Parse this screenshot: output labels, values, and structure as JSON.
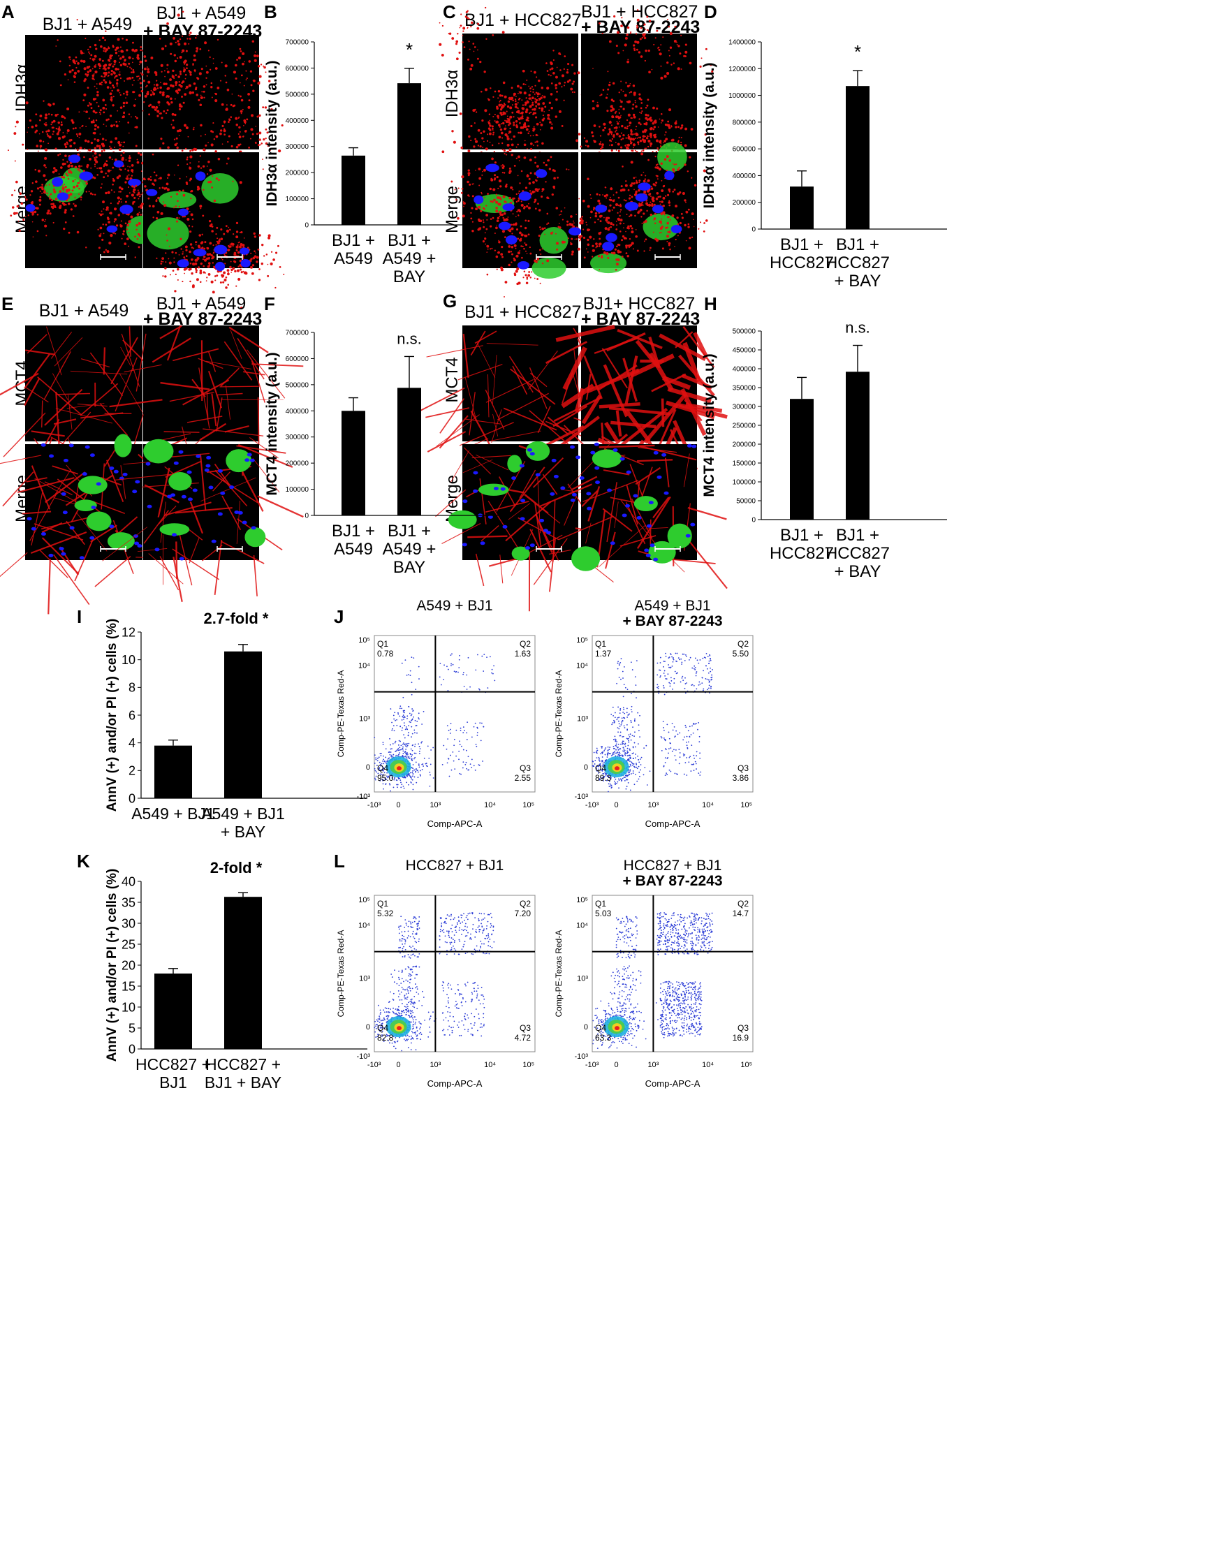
{
  "panels": {
    "A": {
      "letter": "A",
      "left": "BJ1 + A549",
      "right_top": "BJ1 + A549",
      "right_bottom": "+ BAY 87-2243",
      "row1": "IDH3α",
      "row2": "Merge"
    },
    "C": {
      "letter": "C",
      "left": "BJ1 + HCC827",
      "right_top": "BJ1 + HCC827",
      "right_bottom": "+ BAY 87-2243",
      "row1": "IDH3α",
      "row2": "Merge"
    },
    "E": {
      "letter": "E",
      "left": "BJ1 + A549",
      "right_top": "BJ1 + A549",
      "right_bottom": "+ BAY 87-2243",
      "row1": "MCT4",
      "row2": "Merge"
    },
    "G": {
      "letter": "G",
      "left": "BJ1 + HCC827",
      "right_top": "BJ1+ HCC827",
      "right_bottom": "+ BAY 87-2243",
      "row1": "MCT4",
      "row2": "Merge"
    },
    "J": {
      "letter": "J"
    },
    "L": {
      "letter": "L"
    }
  },
  "chart_data": [
    {
      "id": "B",
      "type": "bar",
      "ylabel": "IDH3α intensity  (a.u.)",
      "ylim": [
        0,
        700000
      ],
      "ticks": [
        0,
        100000,
        200000,
        300000,
        400000,
        500000,
        600000,
        700000
      ],
      "categories": [
        [
          "BJ1 +",
          "A549"
        ],
        [
          "BJ1 +",
          "A549 +",
          "BAY"
        ]
      ],
      "values": [
        265000,
        542000
      ],
      "errors": [
        30000,
        57000
      ],
      "annotation": "*"
    },
    {
      "id": "D",
      "type": "bar",
      "ylabel": "IDH3α intensity (a.u.)",
      "ylim": [
        0,
        1400000
      ],
      "ticks": [
        0,
        200000,
        400000,
        600000,
        800000,
        1000000,
        1200000,
        1400000
      ],
      "categories": [
        [
          "BJ1 +",
          "HCC827"
        ],
        [
          "BJ1 +",
          "HCC827",
          "+ BAY"
        ]
      ],
      "values": [
        318000,
        1070000
      ],
      "errors": [
        117000,
        115000
      ],
      "annotation": "*"
    },
    {
      "id": "F",
      "type": "bar",
      "ylabel": "MCT4 intensity (a.u.)",
      "ylim": [
        0,
        700000
      ],
      "ticks": [
        0,
        100000,
        200000,
        300000,
        400000,
        500000,
        600000,
        700000
      ],
      "categories": [
        [
          "BJ1 +",
          "A549"
        ],
        [
          "BJ1 +",
          "A549 +",
          "BAY"
        ]
      ],
      "values": [
        400000,
        488000
      ],
      "errors": [
        50000,
        120000
      ],
      "annotation": "n.s."
    },
    {
      "id": "H",
      "type": "bar",
      "ylabel": "MCT4 intensity (a.u.)",
      "ylim": [
        0,
        500000
      ],
      "ticks": [
        0,
        50000,
        100000,
        150000,
        200000,
        250000,
        300000,
        350000,
        400000,
        450000,
        500000
      ],
      "categories": [
        [
          "BJ1 +",
          "HCC827"
        ],
        [
          "BJ1 +",
          "HCC827",
          "+ BAY"
        ]
      ],
      "values": [
        320000,
        392000
      ],
      "errors": [
        57000,
        70000
      ],
      "annotation": "n.s."
    },
    {
      "id": "I",
      "type": "bar",
      "title": "2.7-fold *",
      "ylabel": "AnnV (+) and/or PI (+) cells (%)",
      "ylim": [
        0,
        12
      ],
      "ticks": [
        0,
        2,
        4,
        6,
        8,
        10,
        12
      ],
      "categories": [
        [
          "A549 + BJ1"
        ],
        [
          "A549 + BJ1",
          "+ BAY"
        ]
      ],
      "values": [
        3.8,
        10.6
      ],
      "errors": [
        0.4,
        0.5
      ]
    },
    {
      "id": "K",
      "type": "bar",
      "title": "2-fold *",
      "ylabel": "AnnV (+) and/or PI (+) cells (%)",
      "ylim": [
        0,
        40
      ],
      "ticks": [
        0,
        5,
        10,
        15,
        20,
        25,
        30,
        35,
        40
      ],
      "categories": [
        [
          "HCC827 +",
          "BJ1"
        ],
        [
          "HCC827 +",
          "BJ1 + BAY"
        ]
      ],
      "values": [
        18.0,
        36.3
      ],
      "errors": [
        1.2,
        1.0
      ]
    },
    {
      "id": "J1",
      "type": "scatter",
      "title_lines": [
        "A549 + BJ1"
      ],
      "xlabel": "Comp-APC-A",
      "ylabel": "Comp-PE-Texas Red-A",
      "quadrants": {
        "Q1": "0.78",
        "Q2": "1.63",
        "Q3": "2.55",
        "Q4": "95.0"
      }
    },
    {
      "id": "J2",
      "type": "scatter",
      "title_lines": [
        "A549 + BJ1",
        "+ BAY 87-2243"
      ],
      "xlabel": "Comp-APC-A",
      "ylabel": "Comp-PE-Texas Red-A",
      "quadrants": {
        "Q1": "1.37",
        "Q2": "5.50",
        "Q3": "3.86",
        "Q4": "89.3"
      }
    },
    {
      "id": "L1",
      "type": "scatter",
      "title_lines": [
        "HCC827 + BJ1"
      ],
      "xlabel": "Comp-APC-A",
      "ylabel": "Comp-PE-Texas Red-A",
      "quadrants": {
        "Q1": "5.32",
        "Q2": "7.20",
        "Q3": "4.72",
        "Q4": "82.8"
      }
    },
    {
      "id": "L2",
      "type": "scatter",
      "title_lines": [
        "HCC827 + BJ1",
        "+ BAY 87-2243"
      ],
      "xlabel": "Comp-APC-A",
      "ylabel": "Comp-PE-Texas Red-A",
      "quadrants": {
        "Q1": "5.03",
        "Q2": "14.7",
        "Q3": "16.9",
        "Q4": "63.3"
      }
    }
  ],
  "flow_axis": {
    "x_ticks": [
      "-10³",
      "0",
      "10³",
      "10⁴",
      "10⁵"
    ],
    "y_ticks": [
      "10⁵",
      "10⁴",
      "10³",
      "0",
      "-10³"
    ],
    "quad_names": [
      "Q1",
      "Q2",
      "Q3",
      "Q4"
    ]
  },
  "colors": {
    "red": "#e01010",
    "green": "#2ecc2e",
    "blue": "#1a1aff",
    "bar": "#000000"
  }
}
